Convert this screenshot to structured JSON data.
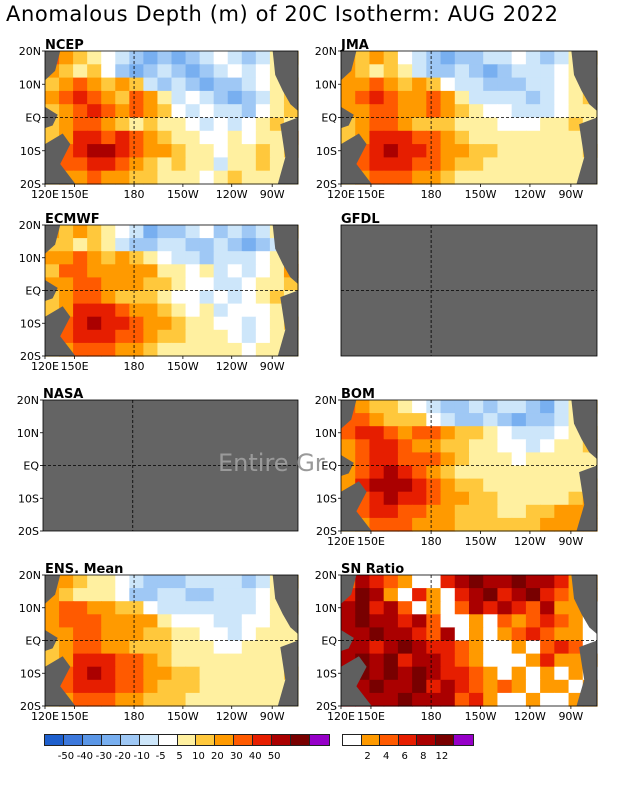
{
  "title": "Anomalous Depth (m) of 20C Isotherm: AUG 2022",
  "watermark": "Entire Gr",
  "colors": {
    "land": "#5f5f5f",
    "missing": "#646464",
    "gridline": "#000000"
  },
  "chart_data": [
    {
      "type": "heatmap",
      "name": "NCEP",
      "missing": false,
      "xlabels": [
        "120E",
        "150E",
        "180",
        "150W",
        "120W",
        "90W"
      ],
      "ylabels": [
        "20N",
        "10N",
        "EQ",
        "10S",
        "20S"
      ],
      "values": [
        [
          30,
          20,
          10,
          5,
          -5,
          -10,
          -20,
          -30,
          -20,
          -30,
          -20,
          -10,
          -5,
          -10,
          -20,
          -10,
          5,
          10
        ],
        [
          20,
          10,
          5,
          10,
          -5,
          -20,
          -30,
          -20,
          -10,
          -20,
          -30,
          -20,
          -10,
          -5,
          -10,
          -5,
          5,
          5
        ],
        [
          10,
          20,
          30,
          20,
          10,
          20,
          10,
          -10,
          -20,
          -10,
          -20,
          -30,
          -20,
          -20,
          -10,
          -5,
          5,
          10
        ],
        [
          20,
          30,
          40,
          30,
          20,
          10,
          30,
          20,
          5,
          -10,
          -5,
          -10,
          -20,
          -30,
          -20,
          -10,
          5,
          10
        ],
        [
          10,
          20,
          30,
          40,
          30,
          20,
          30,
          20,
          10,
          -5,
          -10,
          -5,
          -10,
          -10,
          -20,
          -5,
          5,
          10
        ],
        [
          10,
          20,
          30,
          30,
          20,
          10,
          5,
          10,
          5,
          5,
          -5,
          -10,
          -5,
          -10,
          -5,
          5,
          10,
          5
        ],
        [
          10,
          20,
          40,
          40,
          30,
          40,
          30,
          20,
          10,
          5,
          5,
          -5,
          -5,
          5,
          -5,
          5,
          5,
          20
        ],
        [
          10,
          30,
          40,
          50,
          50,
          40,
          30,
          20,
          20,
          10,
          5,
          5,
          -5,
          5,
          5,
          10,
          5,
          10
        ],
        [
          10,
          30,
          30,
          40,
          40,
          30,
          20,
          10,
          5,
          10,
          5,
          5,
          -10,
          5,
          5,
          10,
          5,
          5
        ],
        [
          10,
          20,
          20,
          30,
          20,
          20,
          10,
          10,
          5,
          5,
          5,
          -5,
          5,
          10,
          5,
          5,
          5,
          5
        ]
      ]
    },
    {
      "type": "heatmap",
      "name": "JMA",
      "missing": false,
      "xlabels": [
        "120E",
        "150E",
        "180",
        "150W",
        "120W",
        "90W"
      ],
      "ylabels": [
        "20N",
        "10N",
        "EQ",
        "10S",
        "20S"
      ],
      "values": [
        [
          20,
          10,
          20,
          10,
          -5,
          -10,
          -20,
          -30,
          -20,
          -20,
          -10,
          -10,
          -5,
          -10,
          -20,
          -10,
          5,
          10
        ],
        [
          20,
          10,
          5,
          10,
          5,
          -10,
          -20,
          -20,
          -10,
          -20,
          -30,
          -20,
          -10,
          -10,
          -10,
          -5,
          5,
          5
        ],
        [
          20,
          20,
          30,
          20,
          10,
          20,
          10,
          -5,
          -10,
          -10,
          -20,
          -20,
          -20,
          -10,
          -10,
          -5,
          5,
          10
        ],
        [
          20,
          30,
          40,
          30,
          20,
          20,
          30,
          20,
          5,
          -10,
          -10,
          -10,
          -10,
          -20,
          -10,
          -5,
          5,
          10
        ],
        [
          20,
          20,
          30,
          30,
          20,
          20,
          30,
          20,
          10,
          5,
          -5,
          -5,
          -10,
          -10,
          -10,
          -5,
          5,
          5
        ],
        [
          10,
          20,
          30,
          30,
          20,
          10,
          10,
          10,
          5,
          5,
          5,
          -5,
          -5,
          -5,
          5,
          5,
          10,
          5
        ],
        [
          10,
          20,
          40,
          40,
          40,
          30,
          30,
          20,
          10,
          5,
          5,
          5,
          5,
          5,
          5,
          5,
          5,
          5
        ],
        [
          20,
          30,
          40,
          50,
          40,
          40,
          30,
          20,
          20,
          10,
          10,
          5,
          5,
          5,
          5,
          5,
          5,
          10
        ],
        [
          20,
          30,
          40,
          40,
          40,
          30,
          30,
          20,
          10,
          10,
          5,
          5,
          5,
          5,
          5,
          5,
          5,
          5
        ],
        [
          10,
          20,
          30,
          30,
          30,
          20,
          20,
          10,
          5,
          5,
          5,
          5,
          5,
          5,
          5,
          5,
          5,
          5
        ]
      ]
    },
    {
      "type": "heatmap",
      "name": "ECMWF",
      "missing": false,
      "xlabels": [
        "120E",
        "150E",
        "180",
        "150W",
        "120W",
        "90W"
      ],
      "ylabels": [
        "20N",
        "10N",
        "EQ",
        "10S",
        "20S"
      ],
      "values": [
        [
          20,
          10,
          20,
          10,
          5,
          -5,
          -10,
          -30,
          -20,
          -20,
          -10,
          -5,
          -20,
          -10,
          -20,
          -10,
          5,
          10
        ],
        [
          10,
          10,
          5,
          10,
          5,
          -10,
          -20,
          -20,
          -10,
          -10,
          -20,
          -20,
          -10,
          -20,
          -30,
          -20,
          -10,
          5
        ],
        [
          20,
          20,
          30,
          20,
          10,
          20,
          10,
          5,
          -5,
          -10,
          -10,
          -20,
          -10,
          -10,
          -10,
          -5,
          5,
          10
        ],
        [
          10,
          30,
          30,
          20,
          20,
          20,
          20,
          20,
          5,
          5,
          -5,
          5,
          -10,
          -5,
          -10,
          -5,
          5,
          20
        ],
        [
          20,
          20,
          30,
          30,
          20,
          20,
          20,
          10,
          10,
          5,
          -5,
          -5,
          -10,
          -10,
          -5,
          5,
          5,
          10
        ],
        [
          10,
          20,
          30,
          30,
          20,
          10,
          10,
          10,
          5,
          -5,
          -5,
          -10,
          -5,
          -10,
          -5,
          5,
          10,
          5
        ],
        [
          10,
          20,
          40,
          40,
          40,
          30,
          20,
          20,
          10,
          5,
          -5,
          5,
          -10,
          -5,
          -5,
          -5,
          5,
          5
        ],
        [
          20,
          30,
          40,
          50,
          40,
          40,
          30,
          20,
          20,
          10,
          5,
          5,
          -5,
          -5,
          -10,
          -5,
          5,
          10
        ],
        [
          20,
          30,
          40,
          40,
          40,
          30,
          30,
          20,
          10,
          10,
          5,
          5,
          5,
          -5,
          -10,
          -5,
          5,
          5
        ],
        [
          10,
          20,
          30,
          30,
          30,
          20,
          20,
          10,
          5,
          5,
          5,
          5,
          5,
          5,
          -5,
          5,
          5,
          5
        ]
      ]
    },
    {
      "type": "heatmap",
      "name": "GFDL",
      "missing": true,
      "xlabels": [],
      "ylabels": [],
      "values": []
    },
    {
      "type": "heatmap",
      "name": "NASA",
      "missing": true,
      "xlabels": [],
      "ylabels": [
        "20N",
        "10N",
        "EQ",
        "10S",
        "20S"
      ],
      "values": []
    },
    {
      "type": "heatmap",
      "name": "BOM",
      "missing": false,
      "xlabels": [
        "120E",
        "150E",
        "180",
        "150W",
        "120W",
        "90W"
      ],
      "ylabels": [
        "20N",
        "10N",
        "EQ",
        "10S",
        "20S"
      ],
      "values": [
        [
          30,
          20,
          10,
          10,
          5,
          -5,
          -10,
          -20,
          -20,
          -10,
          -20,
          -10,
          -10,
          -20,
          -30,
          -10,
          5,
          10
        ],
        [
          30,
          30,
          20,
          10,
          10,
          10,
          -5,
          -10,
          -20,
          -20,
          -10,
          -20,
          -30,
          -20,
          -20,
          -10,
          5,
          5
        ],
        [
          30,
          40,
          40,
          30,
          20,
          30,
          30,
          20,
          10,
          10,
          5,
          -5,
          -10,
          -10,
          -10,
          -5,
          5,
          10
        ],
        [
          20,
          30,
          40,
          40,
          30,
          20,
          20,
          10,
          10,
          5,
          5,
          -5,
          -5,
          -10,
          -5,
          5,
          5,
          10
        ],
        [
          20,
          30,
          40,
          40,
          30,
          30,
          30,
          20,
          10,
          5,
          5,
          5,
          -5,
          5,
          5,
          5,
          5,
          5
        ],
        [
          20,
          30,
          40,
          50,
          40,
          30,
          20,
          10,
          5,
          5,
          5,
          5,
          5,
          5,
          5,
          5,
          5,
          5
        ],
        [
          20,
          40,
          50,
          60,
          50,
          40,
          30,
          20,
          10,
          10,
          5,
          5,
          5,
          5,
          5,
          5,
          5,
          10
        ],
        [
          20,
          30,
          40,
          50,
          40,
          40,
          30,
          20,
          20,
          10,
          10,
          5,
          5,
          5,
          5,
          5,
          10,
          20
        ],
        [
          20,
          30,
          40,
          40,
          30,
          30,
          20,
          20,
          10,
          10,
          10,
          5,
          5,
          10,
          10,
          20,
          20,
          20
        ],
        [
          10,
          20,
          30,
          30,
          30,
          20,
          20,
          20,
          10,
          10,
          10,
          10,
          10,
          10,
          20,
          20,
          20,
          20
        ]
      ]
    },
    {
      "type": "heatmap",
      "name": "ENS. Mean",
      "missing": false,
      "xlabels": [
        "120E",
        "150E",
        "180",
        "150W",
        "120W",
        "90W"
      ],
      "ylabels": [
        "20N",
        "10N",
        "EQ",
        "10S",
        "20S"
      ],
      "values": [
        [
          20,
          20,
          10,
          5,
          5,
          -5,
          -10,
          -20,
          -20,
          -20,
          -10,
          -10,
          -10,
          -10,
          -20,
          -10,
          5,
          10
        ],
        [
          20,
          10,
          5,
          5,
          5,
          -5,
          -20,
          -20,
          -10,
          -10,
          -20,
          -20,
          -10,
          -10,
          -10,
          -5,
          5,
          5
        ],
        [
          20,
          30,
          30,
          20,
          20,
          10,
          10,
          -5,
          -10,
          -10,
          -10,
          -10,
          -10,
          -10,
          -10,
          -5,
          5,
          10
        ],
        [
          20,
          30,
          30,
          30,
          20,
          20,
          20,
          20,
          5,
          -5,
          -5,
          -5,
          -10,
          -10,
          -5,
          -5,
          5,
          5
        ],
        [
          20,
          20,
          30,
          30,
          20,
          20,
          20,
          10,
          10,
          5,
          5,
          -5,
          -5,
          -10,
          -5,
          5,
          5,
          5
        ],
        [
          10,
          20,
          30,
          30,
          20,
          20,
          10,
          10,
          10,
          5,
          5,
          5,
          -5,
          -5,
          5,
          5,
          5,
          5
        ],
        [
          10,
          20,
          40,
          40,
          40,
          30,
          30,
          20,
          10,
          5,
          5,
          5,
          5,
          5,
          5,
          5,
          5,
          5
        ],
        [
          20,
          30,
          40,
          50,
          40,
          30,
          30,
          20,
          20,
          10,
          10,
          5,
          5,
          5,
          5,
          5,
          5,
          10
        ],
        [
          20,
          30,
          40,
          40,
          40,
          30,
          30,
          20,
          10,
          10,
          10,
          5,
          5,
          5,
          5,
          5,
          5,
          5
        ],
        [
          10,
          20,
          30,
          30,
          30,
          20,
          20,
          10,
          10,
          10,
          5,
          5,
          5,
          5,
          5,
          5,
          5,
          5
        ]
      ]
    },
    {
      "type": "heatmap",
      "name": "SN Ratio",
      "missing": false,
      "xlabels": [
        "120E",
        "150E",
        "180",
        "150W",
        "120W",
        "90W"
      ],
      "ylabels": [
        "20N",
        "10N",
        "EQ",
        "10S",
        "20S"
      ],
      "values": [
        [
          4,
          8,
          6,
          4,
          2,
          1,
          1,
          6,
          8,
          12,
          8,
          10,
          12,
          8,
          10,
          6,
          2,
          2
        ],
        [
          6,
          12,
          8,
          2,
          1,
          6,
          2,
          1,
          6,
          10,
          12,
          6,
          8,
          12,
          6,
          4,
          2,
          2
        ],
        [
          10,
          12,
          6,
          8,
          4,
          1,
          2,
          1,
          4,
          8,
          6,
          8,
          6,
          4,
          8,
          2,
          2,
          1
        ],
        [
          8,
          12,
          10,
          8,
          6,
          8,
          4,
          1,
          1,
          2,
          1,
          4,
          2,
          4,
          6,
          4,
          2,
          1
        ],
        [
          10,
          8,
          12,
          10,
          8,
          6,
          4,
          8,
          1,
          2,
          1,
          2,
          4,
          6,
          4,
          2,
          2,
          1
        ],
        [
          8,
          10,
          6,
          8,
          12,
          8,
          6,
          6,
          4,
          2,
          1,
          1,
          2,
          1,
          4,
          6,
          4,
          1
        ],
        [
          10,
          12,
          8,
          12,
          6,
          10,
          8,
          6,
          4,
          2,
          1,
          1,
          1,
          2,
          6,
          2,
          2,
          2
        ],
        [
          8,
          12,
          10,
          12,
          10,
          12,
          8,
          6,
          6,
          4,
          2,
          1,
          2,
          1,
          2,
          1,
          2,
          1
        ],
        [
          10,
          8,
          12,
          8,
          10,
          12,
          6,
          8,
          6,
          4,
          2,
          4,
          2,
          1,
          2,
          2,
          1,
          2
        ],
        [
          8,
          10,
          8,
          10,
          12,
          8,
          10,
          8,
          4,
          6,
          2,
          1,
          1,
          2,
          1,
          1,
          2,
          2
        ]
      ]
    }
  ],
  "colorbar_anomaly": {
    "labels": [
      "-50",
      "-40",
      "-30",
      "-20",
      "-10",
      "-5",
      "5",
      "10",
      "20",
      "30",
      "40",
      "50"
    ],
    "colors": [
      "#1e5fcd",
      "#3c78dc",
      "#5a96e6",
      "#78aff0",
      "#9fc8f5",
      "#cde6fa",
      "#ffffff",
      "#fff0a0",
      "#ffc83c",
      "#ff9a00",
      "#ff5a00",
      "#e61e00",
      "#aa0000",
      "#780000",
      "#9600c8"
    ]
  },
  "colorbar_sn": {
    "labels": [
      "2",
      "4",
      "6",
      "8",
      "12"
    ],
    "colors": [
      "#ffffff",
      "#ff9a00",
      "#ff5a00",
      "#e61e00",
      "#aa0000",
      "#780000",
      "#9600c8"
    ]
  }
}
